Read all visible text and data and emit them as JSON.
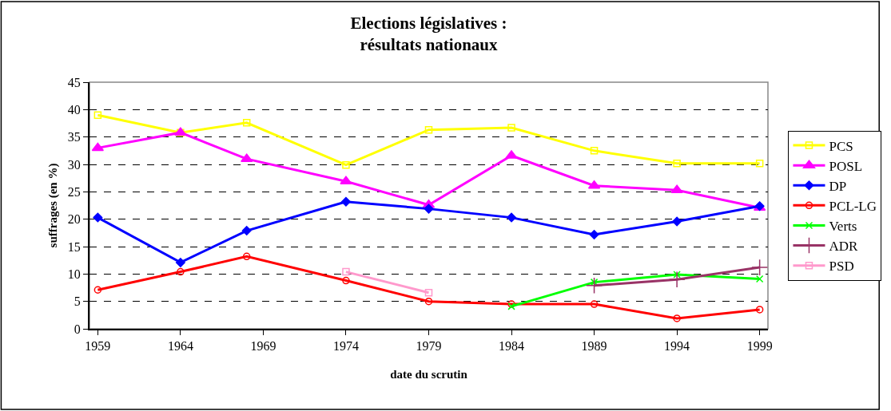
{
  "chart_data": {
    "type": "line",
    "title": "Elections législatives :\nrésultats nationaux",
    "xlabel": "date du scrutin",
    "ylabel": "suffrages (en %)",
    "x": [
      1959,
      1964,
      1968,
      1974,
      1979,
      1984,
      1989,
      1994,
      1999
    ],
    "xlim": [
      1958.5,
      1999.5
    ],
    "xticks": [
      1959,
      1964,
      1969,
      1974,
      1979,
      1984,
      1989,
      1994,
      1999
    ],
    "ylim": [
      0,
      45
    ],
    "yticks": [
      0,
      5,
      10,
      15,
      20,
      25,
      30,
      35,
      40,
      45
    ],
    "grid": "y",
    "legend": "right",
    "line_style": "solid",
    "series": [
      {
        "name": "PCS",
        "color": "#ffff00",
        "marker": "square",
        "values": [
          39.0,
          35.8,
          37.6,
          29.9,
          36.3,
          36.7,
          32.5,
          30.2,
          30.2
        ]
      },
      {
        "name": "POSL",
        "color": "#ff00ff",
        "marker": "triangle",
        "values": [
          33.0,
          35.8,
          31.0,
          26.9,
          22.6,
          31.6,
          26.1,
          25.3,
          22.1
        ]
      },
      {
        "name": "DP",
        "color": "#0000ff",
        "marker": "diamond",
        "values": [
          20.3,
          12.1,
          17.9,
          23.2,
          21.9,
          20.3,
          17.2,
          19.6,
          22.4
        ]
      },
      {
        "name": "PCL-LG",
        "color": "#ff0000",
        "marker": "circle",
        "values": [
          7.1,
          10.4,
          13.2,
          8.8,
          5.0,
          4.5,
          4.5,
          1.9,
          3.5
        ]
      },
      {
        "name": "Verts",
        "color": "#00ff00",
        "marker": "x",
        "values": [
          null,
          null,
          null,
          null,
          null,
          4.1,
          8.5,
          9.9,
          9.1
        ]
      },
      {
        "name": "ADR",
        "color": "#993366",
        "marker": "cross",
        "values": [
          null,
          null,
          null,
          null,
          null,
          null,
          7.9,
          9.0,
          11.2
        ]
      },
      {
        "name": "PSD",
        "color": "#ff99cc",
        "marker": "square",
        "values": [
          null,
          null,
          null,
          10.4,
          6.6,
          null,
          null,
          null,
          null
        ]
      }
    ]
  }
}
